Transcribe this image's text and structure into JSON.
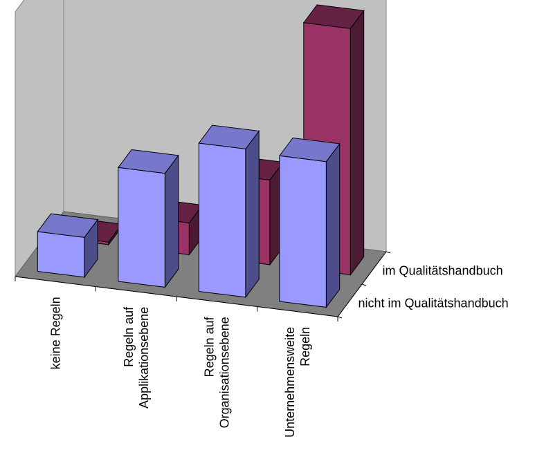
{
  "chart_data": {
    "type": "bar",
    "title": "",
    "xlabel": "",
    "ylabel": "",
    "categories": [
      [
        "keine Regeln"
      ],
      [
        "Regeln auf",
        "Applikationsebene"
      ],
      [
        "Regeln auf",
        "Organisationsebene"
      ],
      [
        "Unternehmensweite",
        "Regeln"
      ]
    ],
    "series": [
      {
        "name": "nicht im Qualitätshandbuch",
        "values": [
          1.5,
          4.3,
          5.6,
          5.5
        ],
        "front": "#9999ff",
        "side": "#4d4d8c",
        "top": "#7777cc"
      },
      {
        "name": "im Qualitätshandbuch",
        "values": [
          0.1,
          1.2,
          3.2,
          9.3
        ],
        "front": "#993366",
        "side": "#4d1a33",
        "top": "#662244"
      }
    ],
    "ylim": [
      0,
      10
    ],
    "grid": false,
    "legend": "depth-axis-right"
  }
}
